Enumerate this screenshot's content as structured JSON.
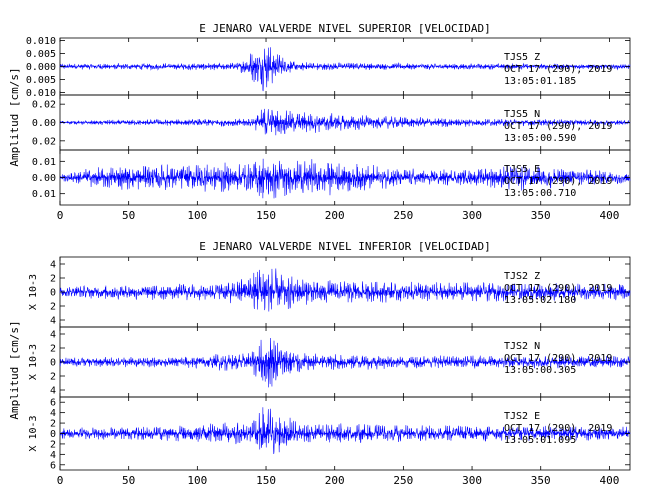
{
  "chart_data": [
    {
      "type": "line",
      "title": "E JENARO VALVERDE NIVEL SUPERIOR [VELOCIDAD]",
      "ylabel": "Amplitud [cm/s]",
      "xlabel": "",
      "xlim": [
        0,
        415
      ],
      "x_ticks": [
        0,
        50,
        100,
        150,
        200,
        250,
        300,
        350,
        400
      ],
      "line_color": "#0000ff",
      "grid": false,
      "panels": [
        {
          "station": "TJS5",
          "component": "Z",
          "date": "OCT 17 (290), 2019",
          "time": "13:05:01.185",
          "ylim": [
            -0.011,
            0.011
          ],
          "y_ticks": [
            -0.01,
            -0.005,
            0.0,
            0.005,
            0.01
          ],
          "y_tick_labels": [
            "0.010",
            "0.005",
            "0.000",
            "0.005",
            "0.010"
          ],
          "envelope": [
            [
              0,
              0.0012
            ],
            [
              40,
              0.0013
            ],
            [
              100,
              0.0014
            ],
            [
              130,
              0.0015
            ],
            [
              137,
              0.005
            ],
            [
              145,
              0.0085
            ],
            [
              150,
              0.011
            ],
            [
              155,
              0.007
            ],
            [
              165,
              0.003
            ],
            [
              180,
              0.0017
            ],
            [
              250,
              0.0013
            ],
            [
              300,
              0.0012
            ],
            [
              415,
              0.0011
            ]
          ]
        },
        {
          "station": "TJS5",
          "component": "N",
          "date": "OCT 17 (290), 2019",
          "time": "13:05:00.590",
          "ylim": [
            -0.03,
            0.03
          ],
          "y_ticks": [
            -0.02,
            0.0,
            0.02
          ],
          "y_tick_labels": [
            "0.02",
            "0.00",
            "0.02"
          ],
          "envelope": [
            [
              0,
              0.002
            ],
            [
              40,
              0.003
            ],
            [
              100,
              0.004
            ],
            [
              140,
              0.005
            ],
            [
              150,
              0.02
            ],
            [
              160,
              0.014
            ],
            [
              200,
              0.01
            ],
            [
              260,
              0.006
            ],
            [
              320,
              0.004
            ],
            [
              415,
              0.003
            ]
          ]
        },
        {
          "station": "TJS5",
          "component": "E",
          "date": "OCT 17 (290), 2019",
          "time": "13:05:00.710",
          "ylim": [
            -0.017,
            0.017
          ],
          "y_ticks": [
            -0.01,
            0.0,
            0.01
          ],
          "y_tick_labels": [
            "0.01",
            "0.00",
            "0.01"
          ],
          "envelope": [
            [
              0,
              0.002
            ],
            [
              20,
              0.006
            ],
            [
              50,
              0.008
            ],
            [
              100,
              0.009
            ],
            [
              140,
              0.01
            ],
            [
              150,
              0.016
            ],
            [
              165,
              0.012
            ],
            [
              200,
              0.011
            ],
            [
              250,
              0.006
            ],
            [
              300,
              0.005
            ],
            [
              330,
              0.009
            ],
            [
              370,
              0.006
            ],
            [
              415,
              0.004
            ]
          ]
        }
      ]
    },
    {
      "type": "line",
      "title": "E JENARO VALVERDE NIVEL INFERIOR [VELOCIDAD]",
      "ylabel": "Amplitud [cm/s]",
      "xlabel": "",
      "xlim": [
        0,
        415
      ],
      "x_ticks": [
        0,
        50,
        100,
        150,
        200,
        250,
        300,
        350,
        400
      ],
      "line_color": "#0000ff",
      "grid": false,
      "panels": [
        {
          "station": "TJS2",
          "component": "Z",
          "date": "OCT 17 (290), 2019",
          "time": "13:05:02.180",
          "scale_label": "X 10-3",
          "ylim": [
            -5,
            5
          ],
          "y_ticks": [
            -4,
            -2,
            0,
            2,
            4
          ],
          "y_tick_labels": [
            "4",
            "2",
            "0",
            "2",
            "4"
          ],
          "envelope": [
            [
              0,
              0.9
            ],
            [
              60,
              1.2
            ],
            [
              120,
              1.3
            ],
            [
              135,
              2.5
            ],
            [
              145,
              4
            ],
            [
              150,
              4.8
            ],
            [
              160,
              3
            ],
            [
              180,
              1.8
            ],
            [
              250,
              1.5
            ],
            [
              330,
              1.4
            ],
            [
              415,
              1.2
            ]
          ]
        },
        {
          "station": "TJS2",
          "component": "N",
          "date": "OCT 17 (290), 2019",
          "time": "13:05:00.305",
          "scale_label": "X 10-3",
          "ylim": [
            -5,
            5
          ],
          "y_ticks": [
            -4,
            -2,
            0,
            2,
            4
          ],
          "y_tick_labels": [
            "4",
            "2",
            "0",
            "2",
            "4"
          ],
          "envelope": [
            [
              0,
              0.7
            ],
            [
              80,
              0.8
            ],
            [
              140,
              1.5
            ],
            [
              150,
              4.8
            ],
            [
              160,
              3
            ],
            [
              180,
              1.3
            ],
            [
              260,
              1.0
            ],
            [
              415,
              0.9
            ]
          ]
        },
        {
          "station": "TJS2",
          "component": "E",
          "date": "OCT 17 (290), 2019",
          "time": "13:05:01.095",
          "scale_label": "X 10-3",
          "ylim": [
            -7,
            7
          ],
          "y_ticks": [
            -6,
            -4,
            -2,
            0,
            2,
            4,
            6
          ],
          "y_tick_labels": [
            "6",
            "4",
            "2",
            "0",
            "2",
            "4",
            "6"
          ],
          "envelope": [
            [
              0,
              1.2
            ],
            [
              80,
              1.5
            ],
            [
              140,
              2.5
            ],
            [
              150,
              6.5
            ],
            [
              160,
              4
            ],
            [
              175,
              2.2
            ],
            [
              260,
              1.6
            ],
            [
              350,
              1.5
            ],
            [
              415,
              1.4
            ]
          ]
        }
      ]
    }
  ]
}
